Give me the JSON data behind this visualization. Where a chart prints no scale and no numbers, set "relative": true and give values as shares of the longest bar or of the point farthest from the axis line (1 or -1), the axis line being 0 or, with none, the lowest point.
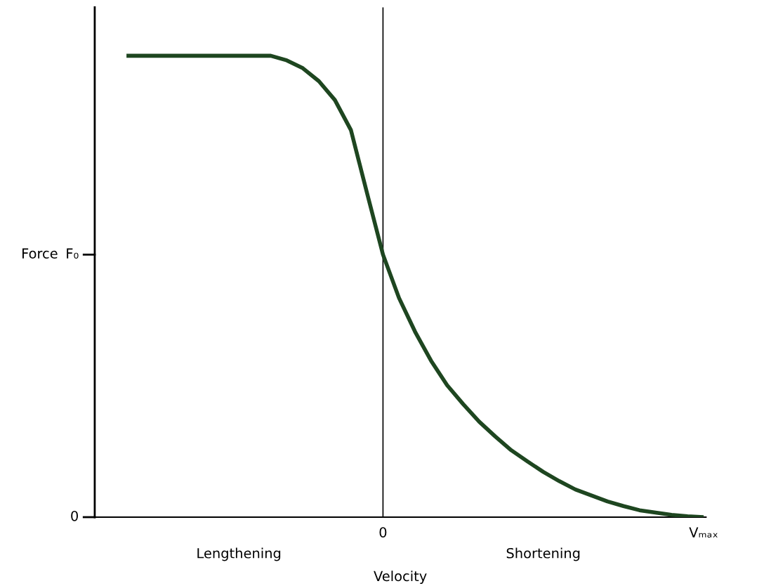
{
  "chart_data": {
    "type": "line",
    "relative": true,
    "xlabel": "Velocity",
    "ylabel": "Force",
    "categories": [
      null,
      null,
      null,
      null,
      null,
      null,
      null,
      null,
      null,
      null,
      null,
      null,
      null,
      null,
      null,
      null,
      "0",
      null,
      null,
      null,
      null,
      null,
      null,
      null,
      null,
      null,
      null,
      null,
      null,
      null,
      null,
      null,
      null,
      null,
      null,
      null,
      "Vₘₐₓ"
    ],
    "annotations": [
      "0",
      "F₀",
      "Lengthening",
      "Shortening"
    ],
    "ref_lines": [
      {
        "axis": "x",
        "value": "0",
        "color": "#000000"
      }
    ],
    "series": [
      {
        "color": "#1e4620",
        "values": [
          1,
          1,
          1,
          1,
          1,
          1,
          1,
          1,
          1,
          1,
          0.99,
          0.973,
          0.945,
          0.904,
          0.839,
          0.703,
          0.569,
          0.475,
          0.402,
          0.339,
          0.286,
          0.245,
          0.207,
          0.175,
          0.145,
          0.121,
          0.098,
          0.078,
          0.06,
          0.047,
          0.034,
          0.024,
          0.015,
          0.01,
          0.005,
          0.002,
          0
        ]
      }
    ]
  }
}
